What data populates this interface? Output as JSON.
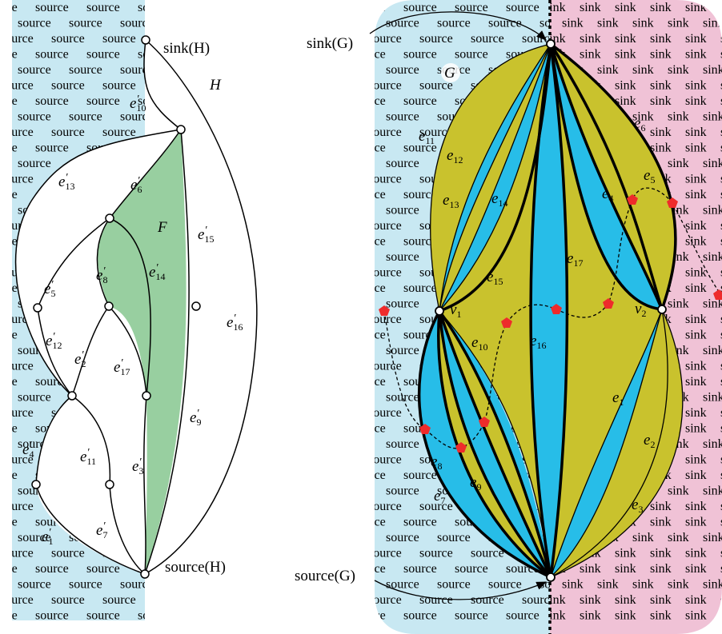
{
  "background": {
    "source_word": "source",
    "sink_word": "sink",
    "source_color": "#c8e8f2",
    "sink_color": "#f0c2d6",
    "source_text_color": "#5cc461",
    "sink_text_color": "#c06a7a"
  },
  "colors": {
    "face_F": "#98cfa0",
    "face_yellow": "#c9c22d",
    "face_blue": "#27bde8",
    "vertex_fill": "#ffffff",
    "dual_marker": "#ee2b2b"
  },
  "graph_H": {
    "name": "H",
    "face_label": "F",
    "sink_label": "sink(H)",
    "source_label": "source(H)",
    "edges": [
      {
        "base": "e",
        "sub": "10"
      },
      {
        "base": "e",
        "sub": "13"
      },
      {
        "base": "e",
        "sub": "6"
      },
      {
        "base": "e",
        "sub": "15"
      },
      {
        "base": "e",
        "sub": "5"
      },
      {
        "base": "e",
        "sub": "8"
      },
      {
        "base": "e",
        "sub": "14"
      },
      {
        "base": "e",
        "sub": "12"
      },
      {
        "base": "e",
        "sub": "2"
      },
      {
        "base": "e",
        "sub": "17"
      },
      {
        "base": "e",
        "sub": "16"
      },
      {
        "base": "e",
        "sub": "9"
      },
      {
        "base": "e",
        "sub": "4"
      },
      {
        "base": "e",
        "sub": "11"
      },
      {
        "base": "e",
        "sub": "3"
      },
      {
        "base": "e",
        "sub": "7"
      },
      {
        "base": "e",
        "sub": "1"
      }
    ]
  },
  "graph_G": {
    "name": "G",
    "sink_label": "sink(G)",
    "source_label": "source(G)",
    "v1": {
      "base": "v",
      "sub": "1"
    },
    "v2": {
      "base": "v",
      "sub": "2"
    },
    "edges": [
      {
        "base": "e",
        "sub": "11"
      },
      {
        "base": "e",
        "sub": "12"
      },
      {
        "base": "e",
        "sub": "13"
      },
      {
        "base": "e",
        "sub": "14"
      },
      {
        "base": "e",
        "sub": "15"
      },
      {
        "base": "e",
        "sub": "17"
      },
      {
        "base": "e",
        "sub": "16"
      },
      {
        "base": "e",
        "sub": "10"
      },
      {
        "base": "e",
        "sub": "6"
      },
      {
        "base": "e",
        "sub": "5"
      },
      {
        "base": "e",
        "sub": "4"
      },
      {
        "base": "e",
        "sub": "1"
      },
      {
        "base": "e",
        "sub": "2"
      },
      {
        "base": "e",
        "sub": "3"
      },
      {
        "base": "e",
        "sub": "8"
      },
      {
        "base": "e",
        "sub": "9"
      },
      {
        "base": "e",
        "sub": "7"
      }
    ]
  }
}
